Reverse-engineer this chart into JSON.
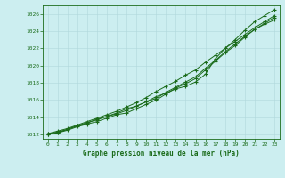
{
  "title": "Graphe pression niveau de la mer (hPa)",
  "xlim": [
    -0.5,
    23.5
  ],
  "ylim": [
    1011.5,
    1027.0
  ],
  "yticks": [
    1012,
    1014,
    1016,
    1018,
    1020,
    1022,
    1024,
    1026
  ],
  "xticks": [
    0,
    1,
    2,
    3,
    4,
    5,
    6,
    7,
    8,
    9,
    10,
    11,
    12,
    13,
    14,
    15,
    16,
    17,
    18,
    19,
    20,
    21,
    22,
    23
  ],
  "bg_color": "#cceef0",
  "grid_color": "#b0d8dc",
  "line_color": "#1a6b1a",
  "label_color": "#1a6b1a",
  "series": [
    [
      1012.0,
      1012.2,
      1012.5,
      1012.9,
      1013.2,
      1013.5,
      1013.9,
      1014.3,
      1014.5,
      1015.0,
      1015.5,
      1016.0,
      1016.7,
      1017.4,
      1017.9,
      1018.5,
      1019.5,
      1020.5,
      1021.5,
      1022.3,
      1023.3,
      1024.2,
      1024.8,
      1025.3
    ],
    [
      1012.0,
      1012.2,
      1012.6,
      1013.0,
      1013.4,
      1013.7,
      1014.1,
      1014.4,
      1014.8,
      1015.3,
      1015.8,
      1016.2,
      1016.9,
      1017.5,
      1018.1,
      1018.7,
      1019.7,
      1020.6,
      1021.6,
      1022.5,
      1023.4,
      1024.2,
      1024.9,
      1025.6
    ],
    [
      1012.1,
      1012.4,
      1012.7,
      1013.1,
      1013.5,
      1013.9,
      1014.3,
      1014.7,
      1015.2,
      1015.7,
      1016.3,
      1017.0,
      1017.6,
      1018.2,
      1018.9,
      1019.5,
      1020.4,
      1021.2,
      1022.0,
      1022.8,
      1023.6,
      1024.4,
      1025.1,
      1025.8
    ],
    [
      1012.1,
      1012.3,
      1012.6,
      1013.0,
      1013.3,
      1013.8,
      1014.1,
      1014.5,
      1015.0,
      1015.3,
      1015.8,
      1016.4,
      1016.8,
      1017.3,
      1017.6,
      1018.1,
      1019.0,
      1020.8,
      1022.0,
      1023.0,
      1024.1,
      1025.1,
      1025.8,
      1026.5
    ]
  ]
}
